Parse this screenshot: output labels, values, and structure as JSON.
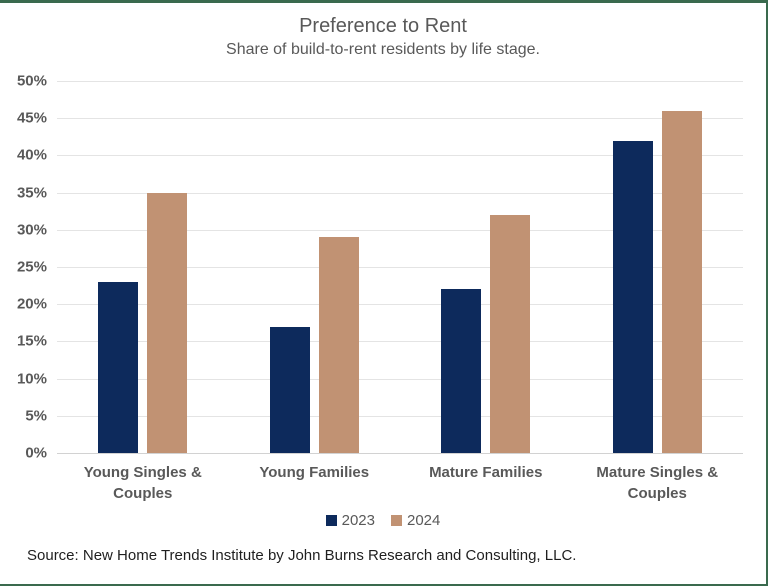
{
  "chart_data": {
    "type": "bar",
    "title": "Preference to Rent",
    "subtitle": "Share of build-to-rent residents by life stage.",
    "categories": [
      "Young Singles & Couples",
      "Young Families",
      "Mature Families",
      "Mature Singles & Couples"
    ],
    "series": [
      {
        "name": "2023",
        "color": "#0d2a5c",
        "values": [
          23,
          17,
          22,
          42
        ]
      },
      {
        "name": "2024",
        "color": "#c19273",
        "values": [
          35,
          29,
          32,
          46
        ]
      }
    ],
    "ylim": [
      0,
      50
    ],
    "ytick_step": 5,
    "ytick_suffix": "%",
    "grid": true,
    "legend_position": "bottom"
  },
  "source": {
    "text": "Source: New Home Trends Institute by John Burns Research and Consulting, LLC."
  },
  "colors": {
    "border_green": "#3a6a4e",
    "gridline": "#e4e4e4",
    "axis_text": "#595959",
    "title_text": "#595959",
    "source_text": "#1f1f1f",
    "navy_2023": "#0d2a5c",
    "tan_2024": "#c19273"
  }
}
